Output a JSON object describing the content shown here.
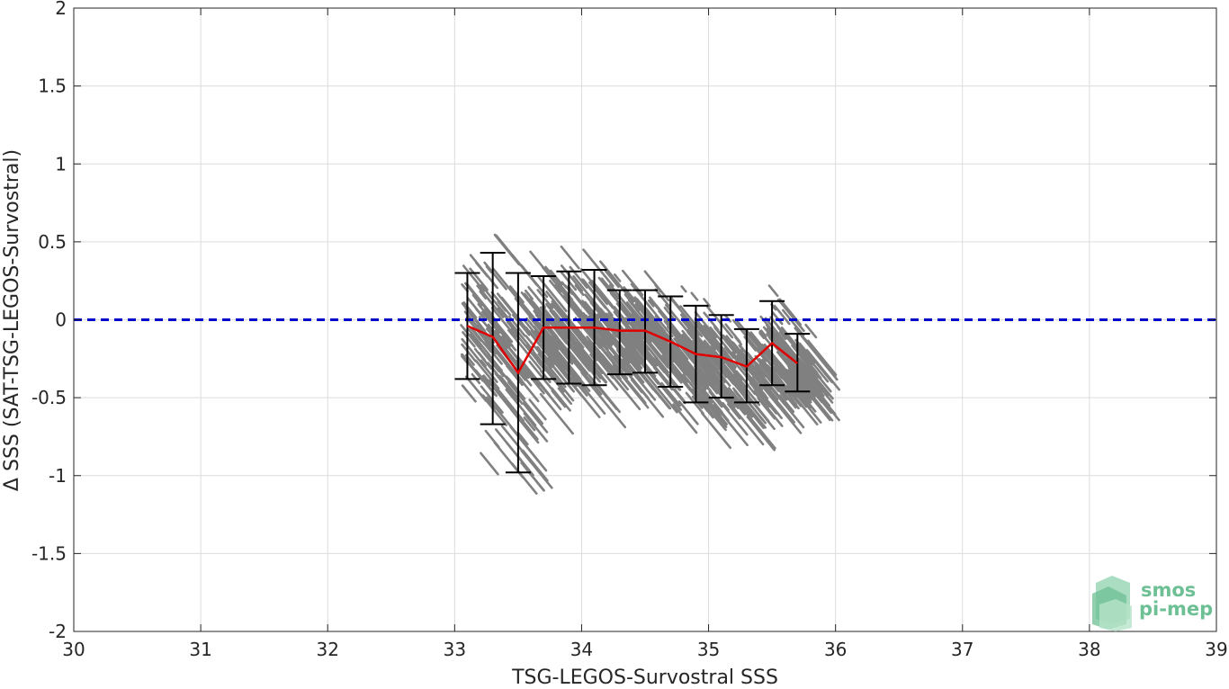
{
  "chart_data": {
    "type": "scatter",
    "xlabel": "TSG-LEGOS-Survostral SSS",
    "ylabel": "Δ SSS (SAT-TSG-LEGOS-Survostral)",
    "xlim": [
      30,
      39
    ],
    "ylim": [
      -2,
      2
    ],
    "xticks": [
      30,
      31,
      32,
      33,
      34,
      35,
      36,
      37,
      38,
      39
    ],
    "yticks": [
      -2,
      -1.5,
      -1,
      -0.5,
      0,
      0.5,
      1,
      1.5,
      2
    ],
    "grid": true,
    "reference_line": {
      "y": 0,
      "color": "#0000cc",
      "style": "dashed"
    },
    "scatter_color": "#808080",
    "series": [
      {
        "type": "line_errorbar",
        "color": "#e00000",
        "x": [
          33.1,
          33.3,
          33.5,
          33.7,
          33.9,
          34.1,
          34.3,
          34.5,
          34.7,
          34.9,
          35.1,
          35.3,
          35.5,
          35.7
        ],
        "y": [
          -0.04,
          -0.11,
          -0.34,
          -0.05,
          -0.05,
          -0.05,
          -0.07,
          -0.07,
          -0.14,
          -0.22,
          -0.24,
          -0.3,
          -0.15,
          -0.28
        ],
        "upper": [
          0.3,
          0.43,
          0.3,
          0.28,
          0.31,
          0.32,
          0.19,
          0.19,
          0.15,
          0.09,
          0.03,
          -0.06,
          0.12,
          -0.09
        ],
        "lower": [
          -0.38,
          -0.67,
          -0.98,
          -0.38,
          -0.41,
          -0.42,
          -0.35,
          -0.34,
          -0.43,
          -0.53,
          -0.5,
          -0.53,
          -0.42,
          -0.46
        ]
      }
    ]
  },
  "logo": {
    "line1": "smos",
    "line2": "pi-mep",
    "color": "#6dbf94"
  }
}
